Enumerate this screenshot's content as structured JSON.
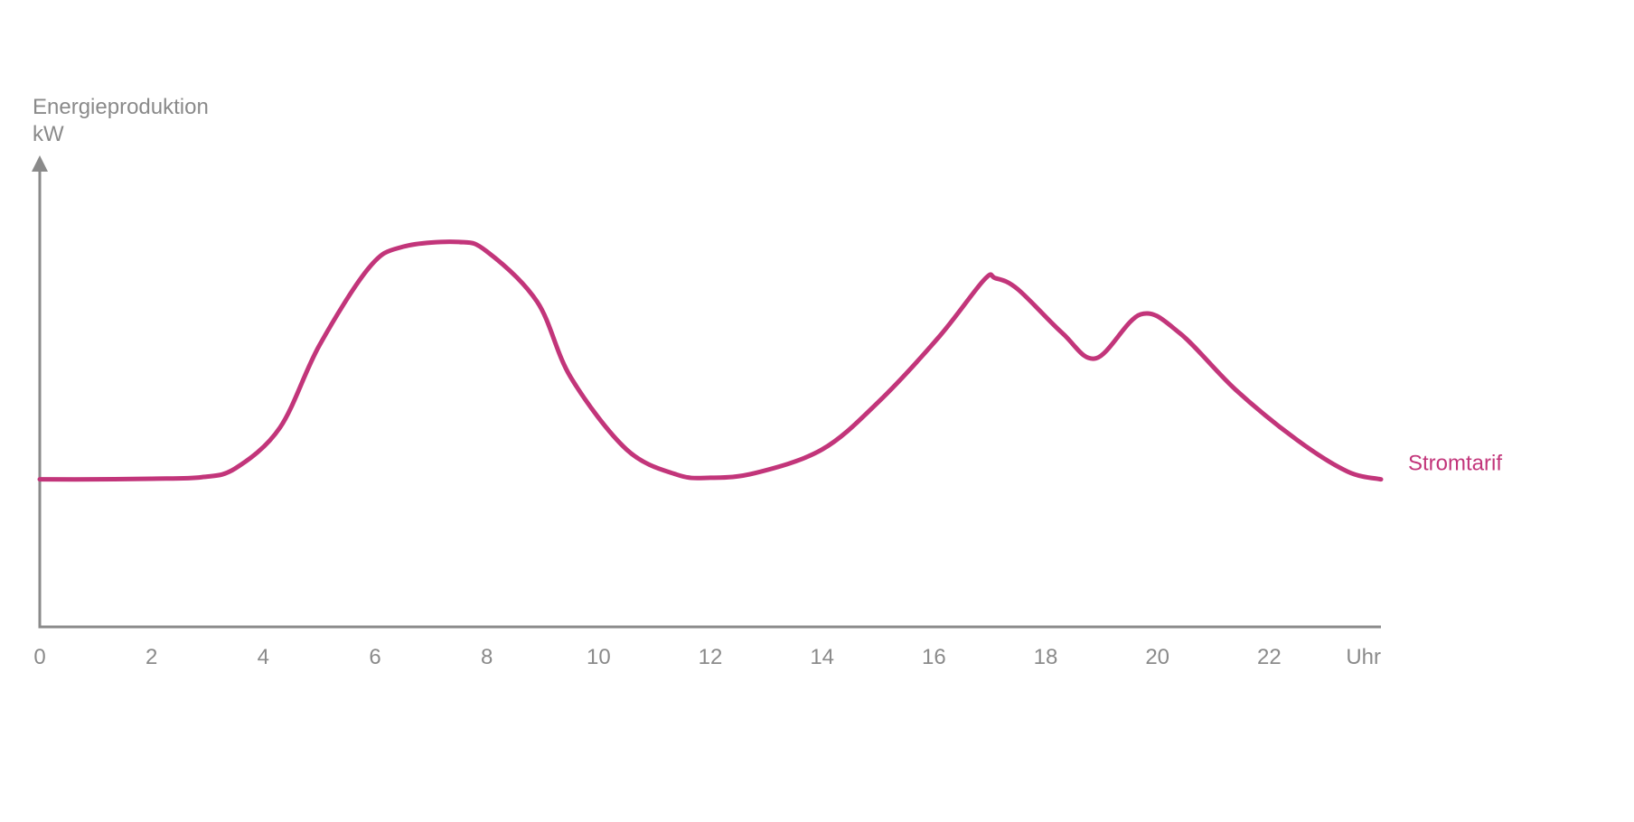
{
  "chart_data": {
    "type": "line",
    "title": "",
    "ylabel": "Energieproduktion",
    "yunit": "kW",
    "xunit": "Uhr",
    "xlim": [
      0,
      24
    ],
    "ylim": [
      0,
      100
    ],
    "grid": false,
    "y_tick_labels": false,
    "x_ticks": [
      0,
      2,
      4,
      6,
      8,
      10,
      12,
      14,
      16,
      18,
      20,
      22
    ],
    "x_tick_labels": [
      "0",
      "2",
      "4",
      "6",
      "8",
      "10",
      "12",
      "14",
      "16",
      "18",
      "20",
      "22"
    ],
    "series": [
      {
        "name": "Stromtarif",
        "color": "#c2357a",
        "x": [
          0,
          1,
          2,
          2.9,
          3.5,
          4.3,
          5,
          5.9,
          6.5,
          7.5,
          8,
          8.9,
          9.5,
          10.5,
          11.4,
          12,
          12.8,
          14,
          15,
          16.1,
          16.9,
          17.1,
          17.5,
          18.3,
          18.9,
          19.7,
          20.4,
          21.4,
          22.5,
          23.4,
          24
        ],
        "y": [
          20.5,
          20.5,
          20.7,
          21.2,
          24,
          37,
          63,
          88,
          94.5,
          96,
          93,
          77,
          53,
          30,
          22,
          21,
          22.5,
          30,
          45,
          66,
          84,
          84.5,
          81,
          67,
          59,
          73,
          67,
          49,
          33,
          23,
          20.5
        ]
      }
    ]
  }
}
